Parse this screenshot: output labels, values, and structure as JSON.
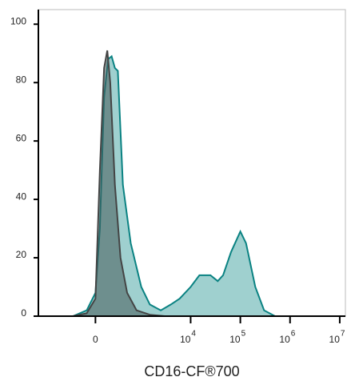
{
  "chart_data": {
    "type": "histogram-overlay",
    "xlabel": "CD16-CF®700",
    "xscale": "biexponential",
    "xlim": [
      -1700,
      13000000
    ],
    "ylim": [
      0,
      105
    ],
    "yticks": [
      0,
      20,
      40,
      60,
      80,
      100
    ],
    "xticks": [
      {
        "value": 0,
        "label": "0"
      },
      {
        "value": 10000,
        "label": "10",
        "power": "4"
      },
      {
        "value": 100000,
        "label": "10",
        "power": "5"
      },
      {
        "value": 1000000,
        "label": "10",
        "power": "6"
      },
      {
        "value": 10000000,
        "label": "10",
        "power": "7"
      }
    ],
    "series": [
      {
        "color": "#0a8282",
        "fill": "#9fd0cf",
        "x": [
          -1000,
          -300,
          -100,
          0,
          50,
          100,
          150,
          200,
          250,
          300,
          400,
          600,
          1000,
          1500,
          2500,
          4000,
          6000,
          10000,
          15000,
          25000,
          35000,
          45000,
          65000,
          100000,
          130000,
          200000,
          300000,
          500000,
          13000000
        ],
        "values": [
          0,
          0,
          2,
          8,
          30,
          75,
          88,
          89,
          85,
          84,
          45,
          25,
          10,
          4,
          2,
          4,
          6,
          10,
          14,
          14,
          12,
          14,
          22,
          29,
          25,
          10,
          2,
          0,
          0
        ]
      },
      {
        "color": "#444444",
        "fill": "rgba(70,90,90,0.55)",
        "x": [
          -300,
          -100,
          0,
          50,
          100,
          140,
          180,
          250,
          350,
          500,
          800,
          1500,
          3000
        ],
        "values": [
          0,
          1,
          6,
          50,
          85,
          91,
          80,
          45,
          20,
          8,
          2,
          0.5,
          0
        ]
      }
    ]
  }
}
